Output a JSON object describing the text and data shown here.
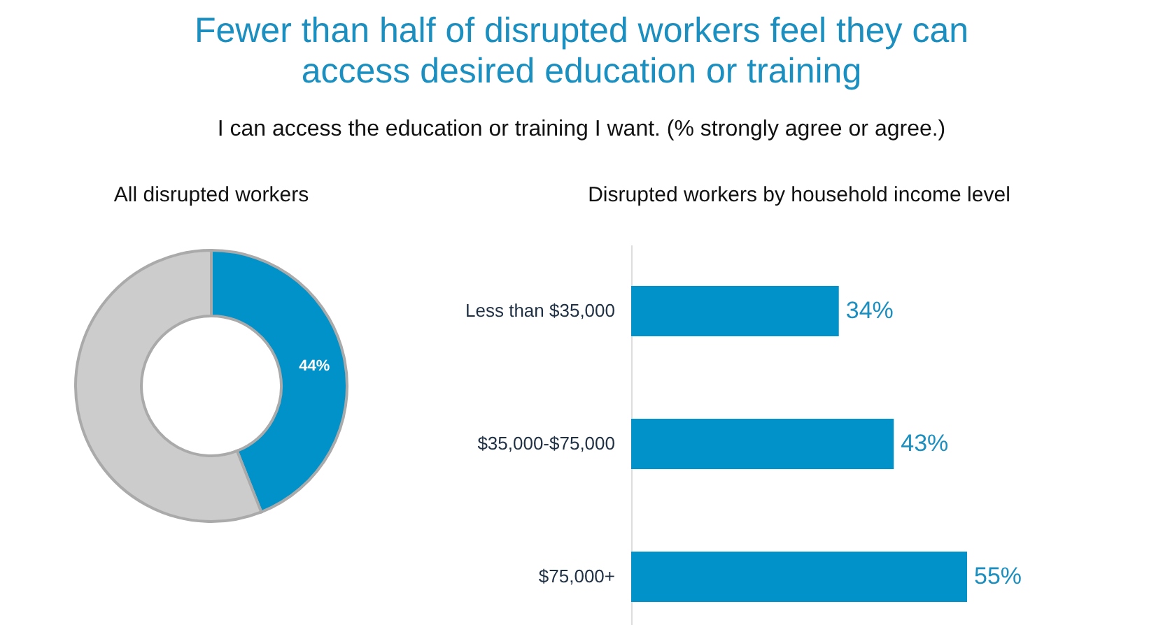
{
  "chart_data": [
    {
      "type": "other",
      "title": "Fewer than half of disrupted workers feel they can access desired education or training",
      "subtitle": "I can access the education or training I want. (% strongly agree or agree.)"
    },
    {
      "type": "donut",
      "title": "All disrupted workers",
      "categories": [
        null,
        null
      ],
      "values": [
        44,
        56
      ],
      "colors": [
        "#0092c8",
        "#cccccc"
      ],
      "value_labels": [
        "44%",
        null
      ]
    },
    {
      "type": "bar",
      "orientation": "horizontal",
      "title": "Disrupted workers by household income level",
      "categories": [
        "Less than $35,000",
        "$35,000-$75,000",
        "$75,000+"
      ],
      "values": [
        34,
        43,
        55
      ],
      "color": "#0092c8",
      "value_labels": [
        "34%",
        "43%",
        "55%"
      ]
    }
  ]
}
